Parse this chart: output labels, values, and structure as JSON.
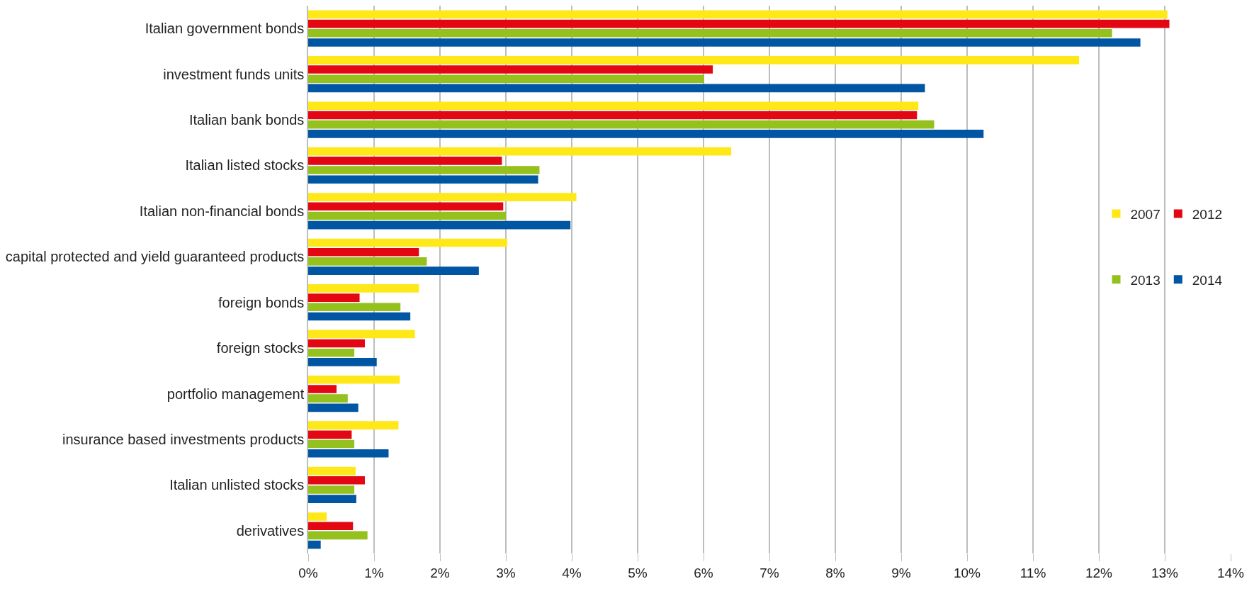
{
  "chart_data": {
    "type": "bar",
    "orientation": "horizontal",
    "categories": [
      "Italian government bonds",
      "investment funds units",
      "Italian bank bonds",
      "Italian listed stocks",
      "Italian non-financial bonds",
      "capital protected and yield guaranteed products",
      "foreign bonds",
      "foreign stocks",
      "portfolio management",
      "insurance based investments products",
      "Italian unlisted stocks",
      "derivatives"
    ],
    "series": [
      {
        "name": "2007",
        "color": "#ffe817",
        "values": [
          13.04,
          11.7,
          9.26,
          6.42,
          4.07,
          3.02,
          1.68,
          1.62,
          1.39,
          1.37,
          0.72,
          0.28
        ]
      },
      {
        "name": "2012",
        "color": "#e30613",
        "values": [
          13.07,
          6.14,
          9.24,
          2.94,
          2.96,
          1.68,
          0.78,
          0.86,
          0.43,
          0.66,
          0.86,
          0.68
        ]
      },
      {
        "name": "2013",
        "color": "#95c11f",
        "values": [
          12.2,
          6.01,
          9.5,
          3.51,
          3.0,
          1.8,
          1.4,
          0.7,
          0.6,
          0.7,
          0.7,
          0.9
        ]
      },
      {
        "name": "2014",
        "color": "#0056a3",
        "values": [
          12.63,
          9.36,
          10.25,
          3.49,
          3.98,
          2.59,
          1.55,
          1.04,
          0.76,
          1.22,
          0.73,
          0.19
        ]
      }
    ],
    "xlim": [
      0,
      14
    ],
    "xticks": [
      {
        "value": 0,
        "label": "0%"
      },
      {
        "value": 1,
        "label": "1%"
      },
      {
        "value": 2,
        "label": "2%"
      },
      {
        "value": 3,
        "label": "3%"
      },
      {
        "value": 4,
        "label": "4%"
      },
      {
        "value": 5,
        "label": "5%"
      },
      {
        "value": 6,
        "label": "6%"
      },
      {
        "value": 7,
        "label": "7%"
      },
      {
        "value": 8,
        "label": "8%"
      },
      {
        "value": 9,
        "label": "9%"
      },
      {
        "value": 10,
        "label": "10%"
      },
      {
        "value": 11,
        "label": "11%"
      },
      {
        "value": 12,
        "label": "12%"
      },
      {
        "value": 13,
        "label": "13%"
      },
      {
        "value": 14,
        "label": "14%"
      }
    ],
    "grid": "x",
    "legend": "right"
  }
}
